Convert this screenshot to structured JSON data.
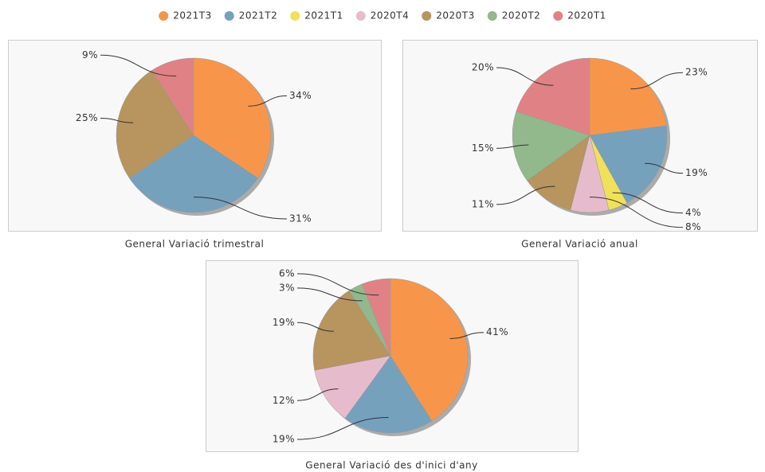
{
  "legend": {
    "names": [
      "2021T3",
      "2021T2",
      "2021T1",
      "2020T4",
      "2020T3",
      "2020T2",
      "2020T1"
    ],
    "colors": [
      "#f7964a",
      "#75a1bd",
      "#f0e15a",
      "#e6bccd",
      "#b8945e",
      "#91b98c",
      "#e08285"
    ]
  },
  "chart_data": [
    {
      "type": "pie",
      "title": "General Variació trimestral",
      "categories": [
        "2021T3",
        "2021T2",
        "2020T3",
        "2020T1"
      ],
      "values": [
        34,
        31,
        25,
        9
      ],
      "value_labels": [
        "34%",
        "31%",
        "25%",
        "9%"
      ]
    },
    {
      "type": "pie",
      "title": "General Variació anual",
      "categories": [
        "2021T3",
        "2021T2",
        "2021T1",
        "2020T4",
        "2020T3",
        "2020T2",
        "2020T1"
      ],
      "values": [
        23,
        19,
        4,
        8,
        11,
        15,
        20
      ],
      "value_labels": [
        "23%",
        "19%",
        "4%",
        "8%",
        "11%",
        "15%",
        "20%"
      ]
    },
    {
      "type": "pie",
      "title": "General Variació des d'inici d'any",
      "categories": [
        "2021T3",
        "2021T2",
        "2020T4",
        "2020T3",
        "2020T2",
        "2020T1"
      ],
      "values": [
        41,
        19,
        12,
        19,
        3,
        6
      ],
      "value_labels": [
        "41%",
        "19%",
        "12%",
        "19%",
        "3%",
        "6%"
      ]
    }
  ]
}
